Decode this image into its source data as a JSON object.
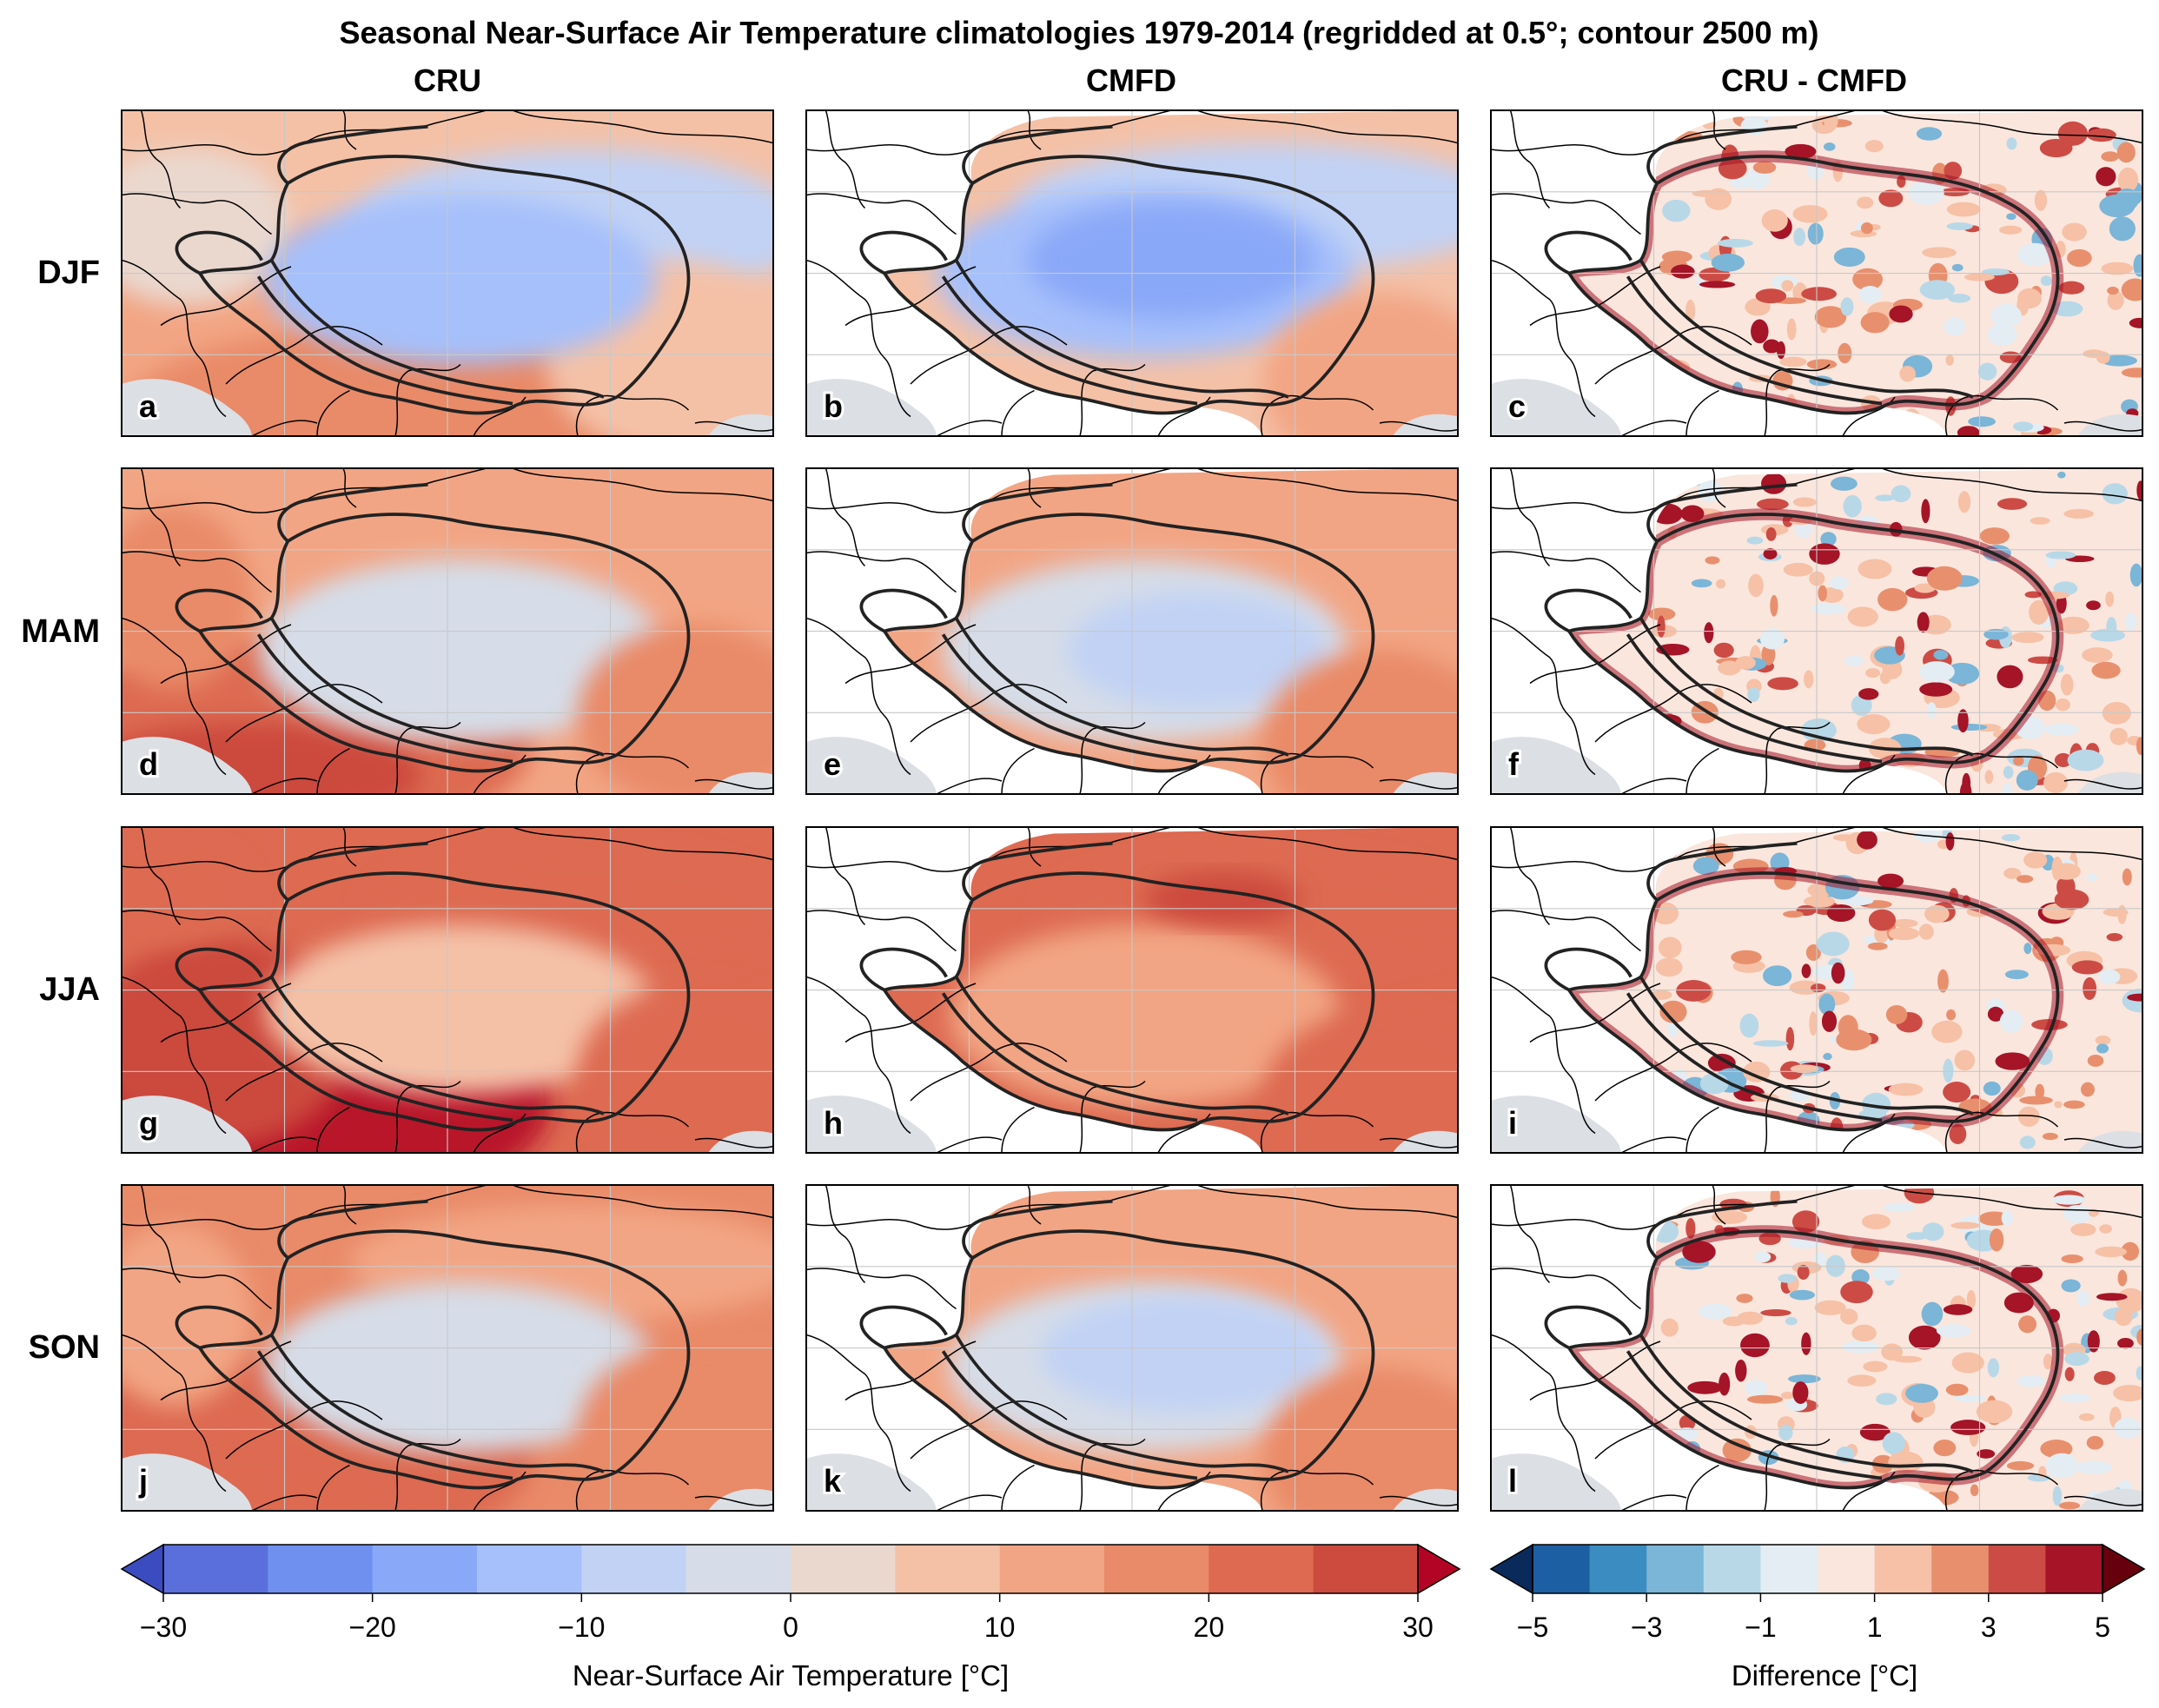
{
  "figure": {
    "title": "Seasonal Near-Surface Air Temperature climatologies 1979-2014 (regridded at 0.5°; contour 2500 m)",
    "columns": [
      "CRU",
      "CMFD",
      "CRU - CMFD"
    ],
    "rows": [
      "DJF",
      "MAM",
      "JJA",
      "SON"
    ],
    "panel_letters": [
      "a",
      "b",
      "c",
      "d",
      "e",
      "f",
      "g",
      "h",
      "i",
      "j",
      "k",
      "l"
    ],
    "temperature_colorbar": {
      "label": "Near-Surface Air Temperature [°C]",
      "ticks": [
        "−30",
        "−20",
        "−10",
        "0",
        "10",
        "20",
        "30"
      ],
      "levels": [
        -30,
        -25,
        -20,
        -15,
        -10,
        -5,
        0,
        5,
        10,
        15,
        20,
        25,
        30
      ],
      "colors": [
        "#5b6fdc",
        "#7090f0",
        "#8aa8f8",
        "#a6c0fb",
        "#c1d2f5",
        "#d6dde8",
        "#ead8cf",
        "#f4c1a7",
        "#f2a584",
        "#e98a68",
        "#dd6a51",
        "#cc4a3e",
        "#b9142a"
      ],
      "extend_low": "#3b4cc0",
      "extend_high": "#b40426"
    },
    "difference_colorbar": {
      "label": "Difference [°C]",
      "ticks": [
        "−5",
        "−3",
        "−1",
        "1",
        "3",
        "5"
      ],
      "levels": [
        -5,
        -4,
        -3,
        -2,
        -1,
        0,
        1,
        2,
        3,
        4,
        5
      ],
      "colors": [
        "#1d5fa3",
        "#3b8cc1",
        "#7bb5d7",
        "#b8d8e8",
        "#e3edf3",
        "#fae6dd",
        "#f6c1a6",
        "#e8906e",
        "#cc4c45",
        "#a51427"
      ],
      "extend_low": "#0a2a5c",
      "extend_high": "#67000d"
    },
    "colors": {
      "ocean": "#dcdfe4",
      "border": "#000000",
      "contour": "#222222",
      "grid": "#c8c8c8"
    }
  }
}
